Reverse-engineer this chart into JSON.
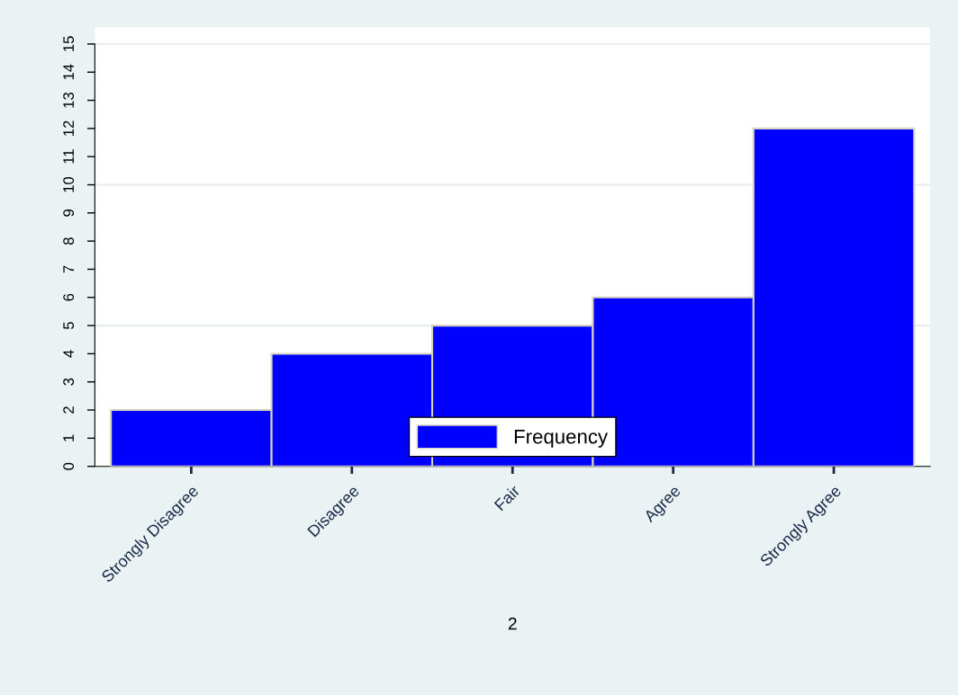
{
  "chart_data": {
    "type": "bar",
    "xlabel": "2",
    "categories": [
      "Strongly Disagree",
      "Disagree",
      "Fair",
      "Agree",
      "Strongly Agree"
    ],
    "series": [
      {
        "name": "Frequency",
        "color": "#0000ff",
        "values": [
          2,
          4,
          5,
          6,
          12
        ]
      }
    ],
    "ylim": [
      0,
      15.6
    ],
    "yticks": [
      0,
      1,
      2,
      3,
      4,
      5,
      6,
      7,
      8,
      9,
      10,
      11,
      12,
      13,
      14,
      15
    ],
    "grid": "y",
    "legend": "bottom"
  }
}
